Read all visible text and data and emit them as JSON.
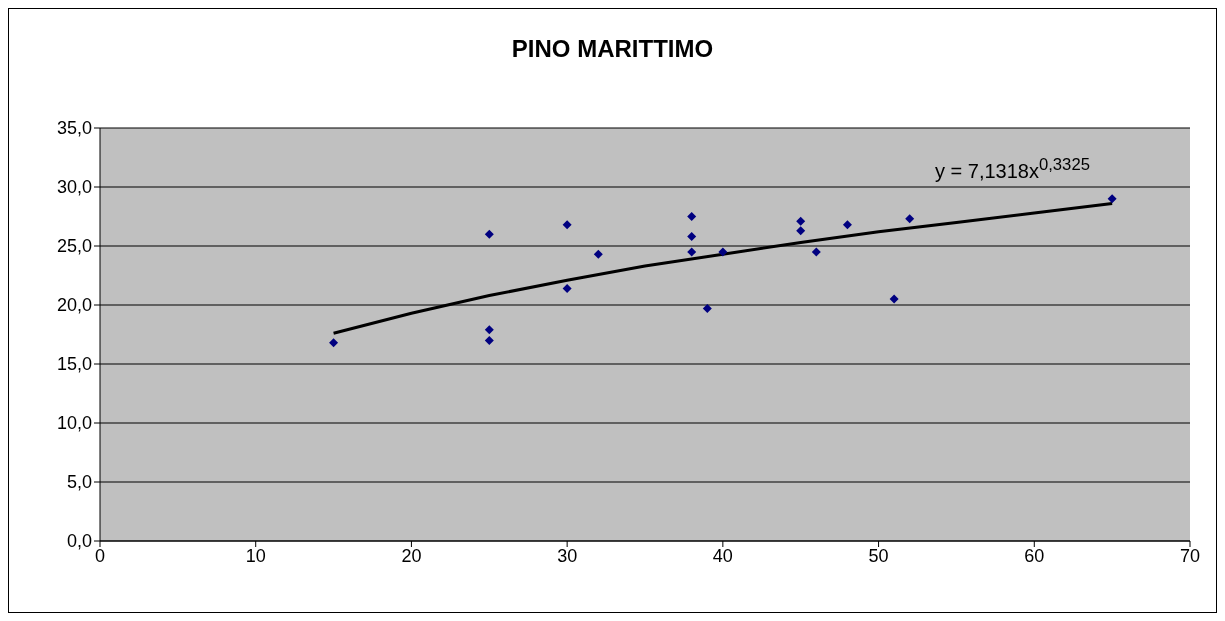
{
  "chart_data": {
    "type": "scatter",
    "title": "PINO MARITTIMO",
    "xlim": [
      0,
      70
    ],
    "xticks": [
      0,
      10,
      20,
      30,
      40,
      50,
      60,
      70
    ],
    "ylim": [
      0,
      35
    ],
    "yticks": [
      {
        "value": 0,
        "label": "0,0"
      },
      {
        "value": 5,
        "label": "5,0"
      },
      {
        "value": 10,
        "label": "10,0"
      },
      {
        "value": 15,
        "label": "15,0"
      },
      {
        "value": 20,
        "label": "20,0"
      },
      {
        "value": 25,
        "label": "25,0"
      },
      {
        "value": 30,
        "label": "30,0"
      },
      {
        "value": 35,
        "label": "35,0"
      }
    ],
    "grid": "y",
    "series": [
      {
        "marker": "diamond",
        "color": "#000080",
        "x": [
          15,
          25,
          25,
          25,
          30,
          30,
          32,
          38,
          38,
          38,
          39,
          40,
          45,
          45,
          46,
          48,
          51,
          52,
          65
        ],
        "values": [
          16.8,
          26.0,
          17.9,
          17.0,
          26.8,
          21.4,
          24.3,
          27.5,
          25.8,
          24.5,
          19.7,
          24.5,
          27.1,
          26.3,
          24.5,
          26.8,
          20.5,
          27.3,
          29.0
        ]
      },
      {
        "type": "line",
        "marker": "none",
        "color": "#000000",
        "x": [
          15,
          20,
          25,
          30,
          35,
          40,
          45,
          50,
          55,
          60,
          65
        ],
        "values": [
          17.6,
          19.3,
          20.8,
          22.1,
          23.3,
          24.3,
          25.3,
          26.2,
          27.0,
          27.8,
          28.6
        ]
      }
    ],
    "annotations": [
      "y = 7,1318x$^{0,3325}$"
    ]
  }
}
